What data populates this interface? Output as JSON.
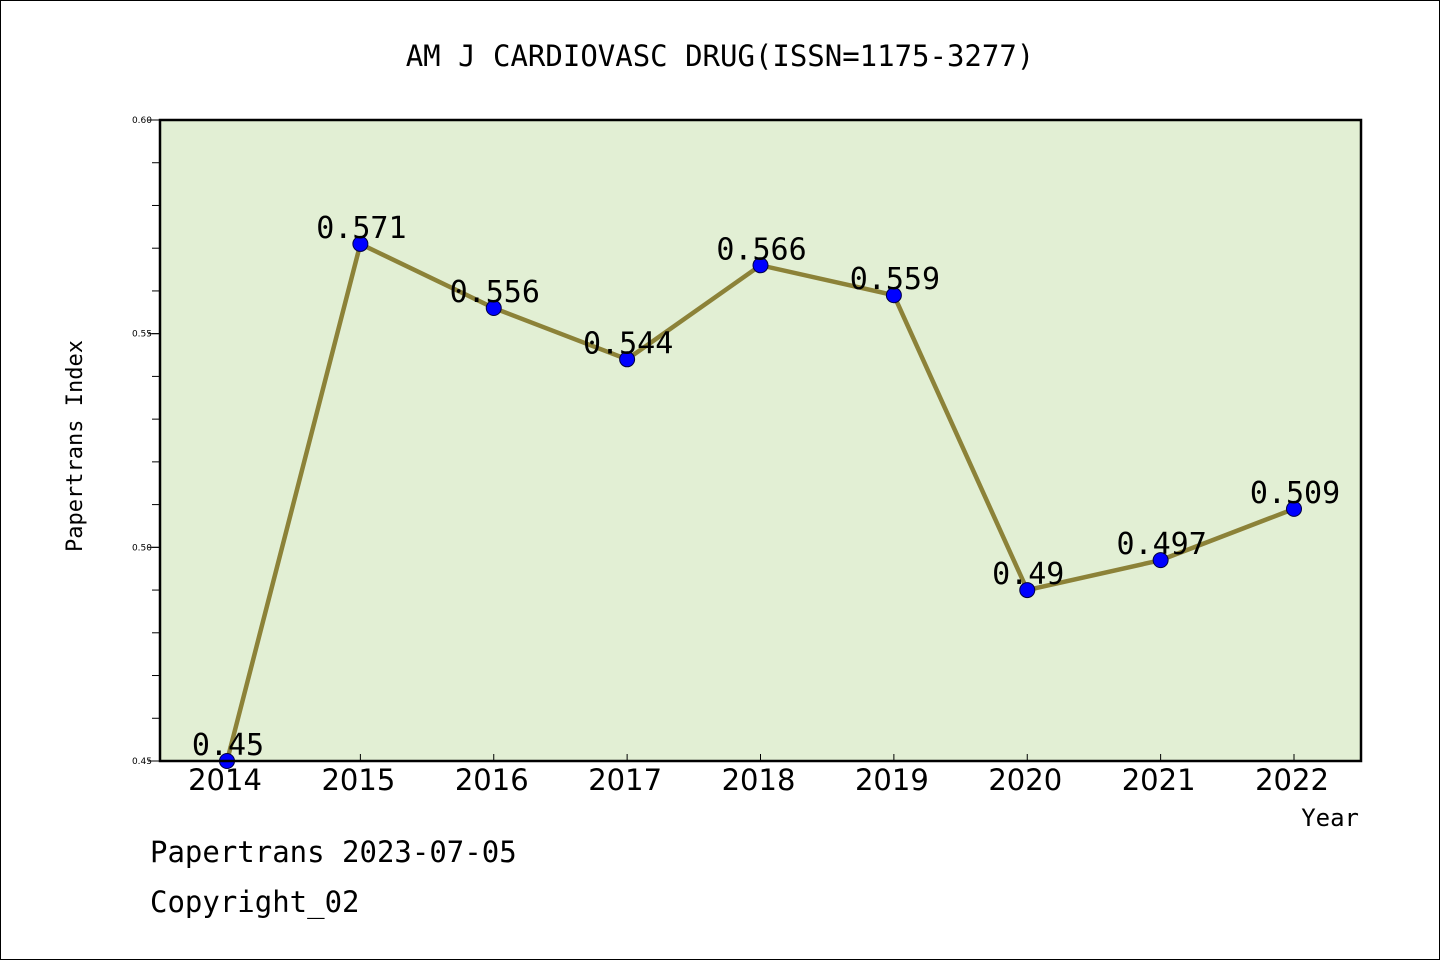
{
  "chart_data": {
    "type": "line",
    "title": "AM J CARDIOVASC DRUG(ISSN=1175-3277)",
    "xlabel": "Year",
    "ylabel": "Papertrans Index",
    "categories": [
      "2014",
      "2015",
      "2016",
      "2017",
      "2018",
      "2019",
      "2020",
      "2021",
      "2022"
    ],
    "values": [
      0.45,
      0.571,
      0.556,
      0.544,
      0.566,
      0.559,
      0.49,
      0.497,
      0.509
    ],
    "data_labels": [
      "0.45",
      "0.571",
      "0.556",
      "0.544",
      "0.566",
      "0.559",
      "0.49",
      "0.497",
      "0.509"
    ],
    "ylim": [
      0.45,
      0.6
    ],
    "y_major_ticks": [
      0.45,
      0.5,
      0.55,
      0.6
    ],
    "y_tick_labels": [
      "0.45",
      "0.50",
      "0.55",
      "0.60"
    ],
    "y_minor_step": 0.01,
    "grid": false,
    "legend": "none",
    "colors": {
      "plot_background": "#e2efd4",
      "line": "#8c8238",
      "marker": "#0000ff",
      "axes": "#000000"
    }
  },
  "footer": {
    "source": "Papertrans 2023-07-05",
    "copyright": "Copyright_02"
  }
}
